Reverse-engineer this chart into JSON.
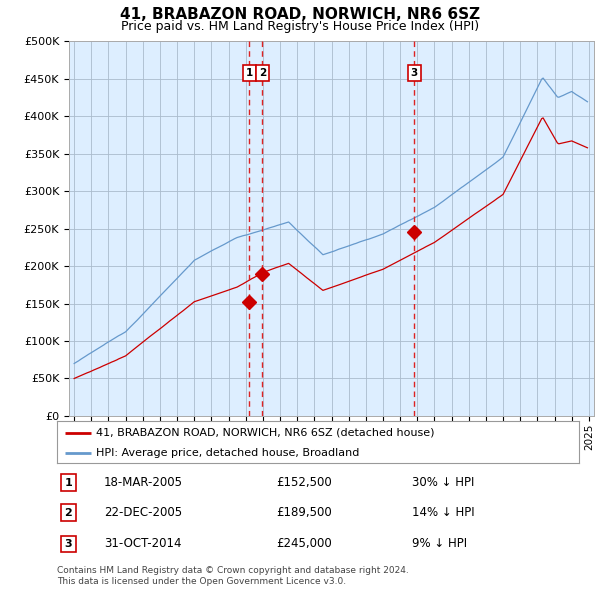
{
  "title": "41, BRABAZON ROAD, NORWICH, NR6 6SZ",
  "subtitle": "Price paid vs. HM Land Registry's House Price Index (HPI)",
  "legend_label_red": "41, BRABAZON ROAD, NORWICH, NR6 6SZ (detached house)",
  "legend_label_blue": "HPI: Average price, detached house, Broadland",
  "footer_line1": "Contains HM Land Registry data © Crown copyright and database right 2024.",
  "footer_line2": "This data is licensed under the Open Government Licence v3.0.",
  "transactions": [
    {
      "num": 1,
      "date": "18-MAR-2005",
      "price": "£152,500",
      "rel": "30% ↓ HPI",
      "x_year": 2005.21,
      "y_val": 152500
    },
    {
      "num": 2,
      "date": "22-DEC-2005",
      "price": "£189,500",
      "rel": "14% ↓ HPI",
      "x_year": 2005.97,
      "y_val": 189500
    },
    {
      "num": 3,
      "date": "31-OCT-2014",
      "price": "£245,000",
      "rel": "9% ↓ HPI",
      "x_year": 2014.83,
      "y_val": 245000
    }
  ],
  "background_color": "#ffffff",
  "chart_bg_color": "#ddeeff",
  "grid_color": "#aabbcc",
  "red_color": "#cc0000",
  "blue_color": "#6699cc",
  "vline_color": "#dd2222",
  "ylim": [
    0,
    500000
  ],
  "yticks": [
    0,
    50000,
    100000,
    150000,
    200000,
    250000,
    300000,
    350000,
    400000,
    450000,
    500000
  ],
  "xlim_start": 1994.7,
  "xlim_end": 2025.3,
  "figw": 6.0,
  "figh": 5.9
}
